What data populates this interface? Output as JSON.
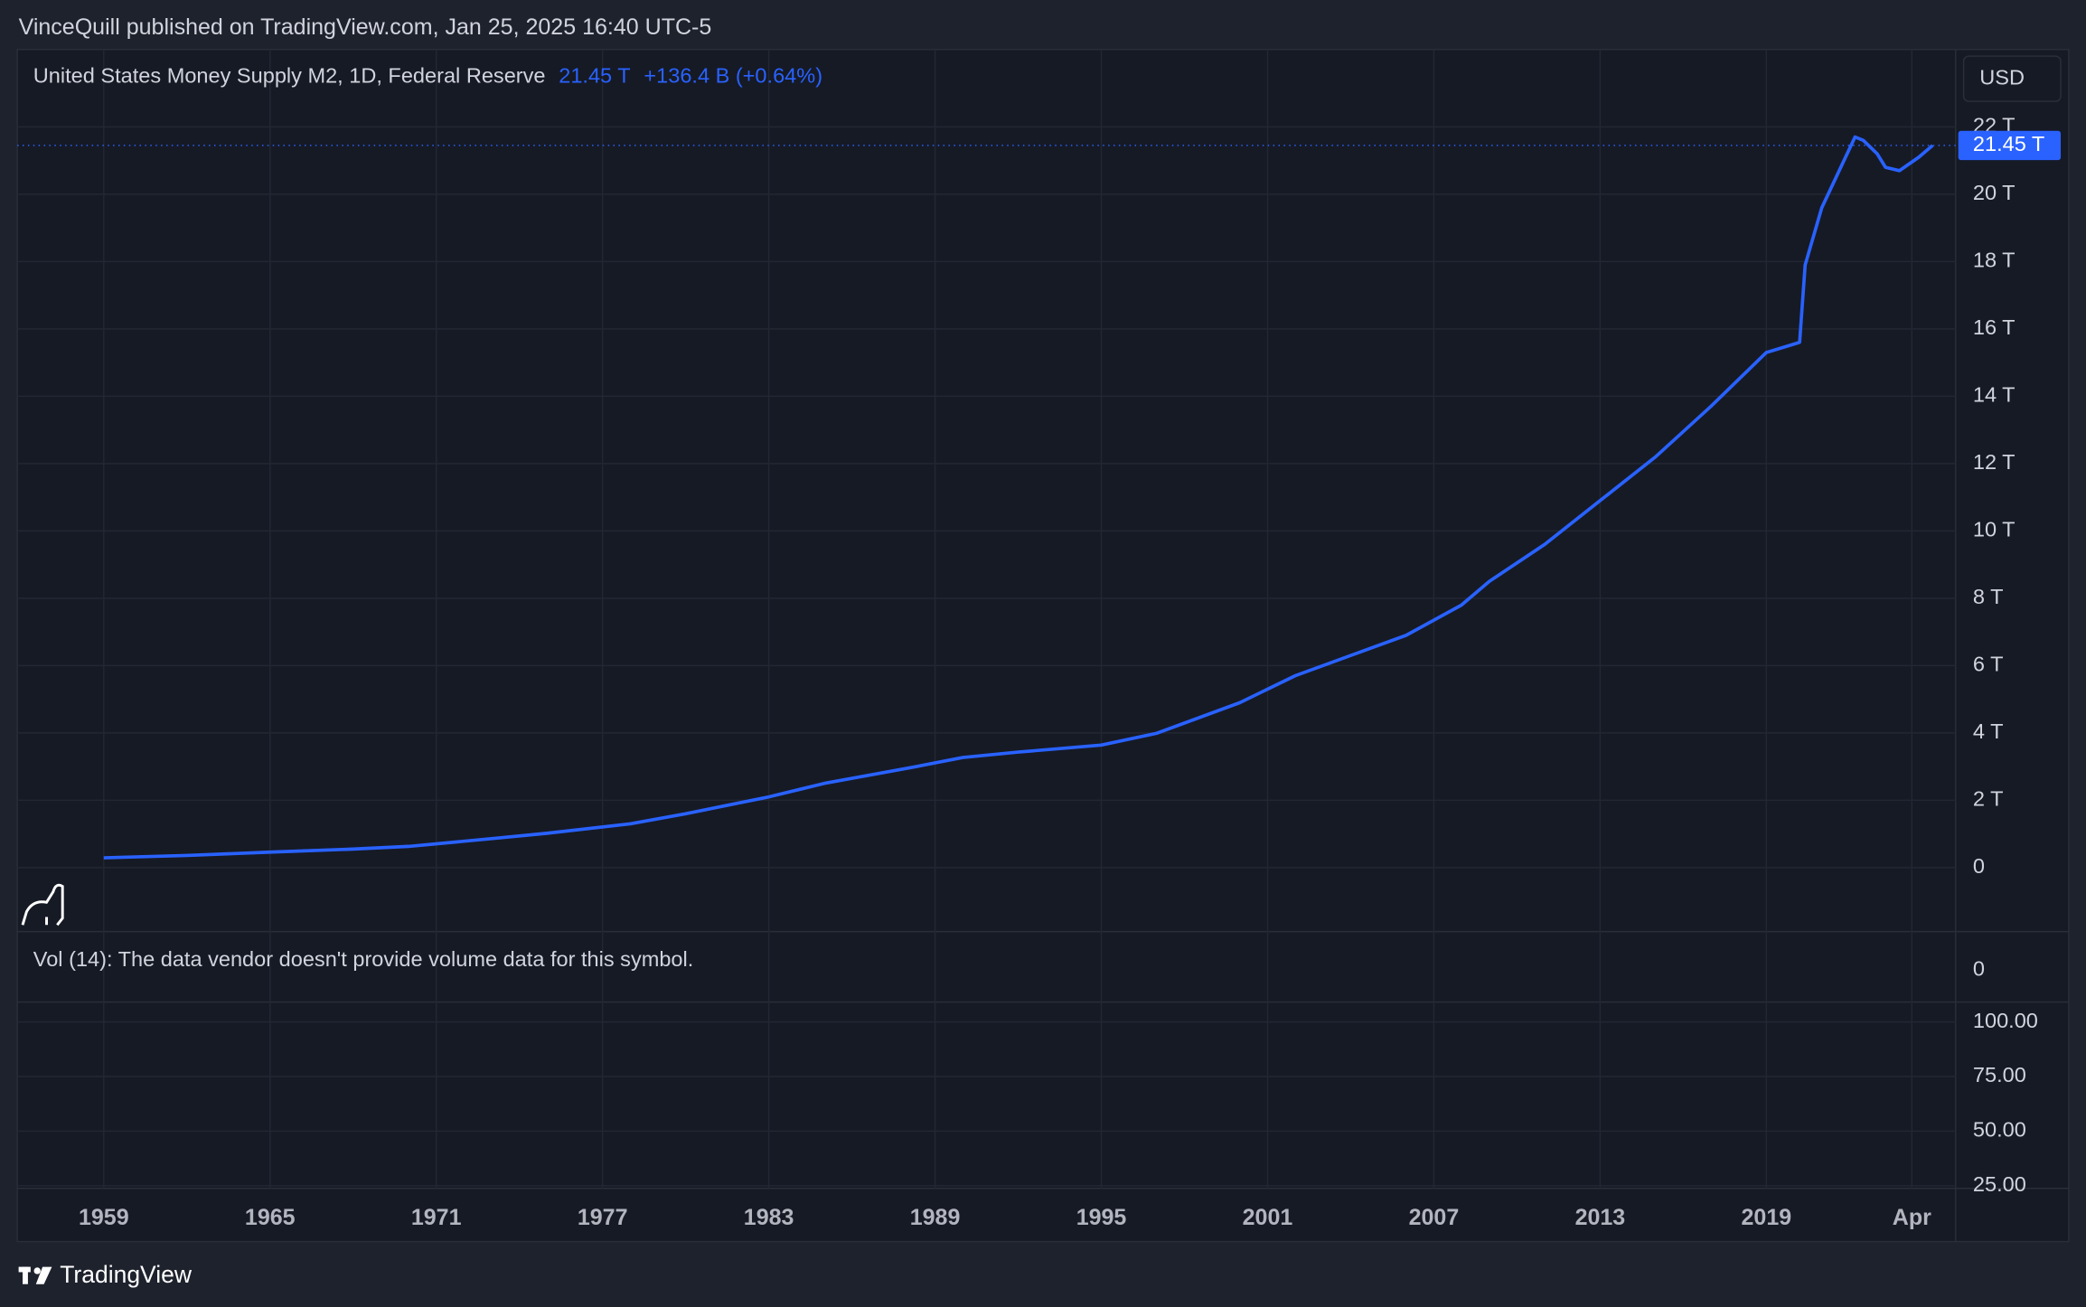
{
  "header": {
    "text": "VinceQuill published on TradingView.com, Jan 25, 2025 16:40 UTC-5"
  },
  "legend": {
    "symbol": "United States Money Supply M2, 1D, Federal Reserve",
    "value": "21.45 T",
    "change": "+136.4 B (+0.64%)"
  },
  "currency_button": "USD",
  "chart_data": {
    "type": "line",
    "x": [
      1959,
      1962,
      1965,
      1968,
      1970,
      1973,
      1975,
      1978,
      1980,
      1983,
      1985,
      1988,
      1990,
      1992,
      1995,
      1997,
      2000,
      2002,
      2004,
      2006,
      2008,
      2009,
      2011,
      2013,
      2015,
      2017,
      2019,
      2020.2,
      2020.4,
      2021,
      2022.2,
      2022.5,
      2023,
      2023.3,
      2023.8,
      2024.5,
      2025
    ],
    "series": [
      {
        "name": "United States Money Supply M2",
        "color": "#2962ff",
        "values": [
          0.29,
          0.36,
          0.46,
          0.55,
          0.63,
          0.86,
          1.02,
          1.3,
          1.6,
          2.1,
          2.5,
          2.95,
          3.27,
          3.43,
          3.64,
          3.99,
          4.9,
          5.7,
          6.3,
          6.9,
          7.8,
          8.5,
          9.6,
          10.9,
          12.2,
          13.7,
          15.3,
          15.6,
          17.9,
          19.6,
          21.7,
          21.6,
          21.2,
          20.8,
          20.7,
          21.1,
          21.45
        ]
      }
    ],
    "xlim": [
      1955.88,
      2025.83
    ],
    "xticks": [
      1959,
      1965,
      1971,
      1977,
      1983,
      1989,
      1995,
      2001,
      2007,
      2013,
      2019,
      {
        "value": 2024.25,
        "label": "Apr"
      }
    ],
    "ylim": [
      -1.9,
      24.3
    ],
    "yticks": [
      0,
      {
        "value": 2,
        "label": "2 T"
      },
      {
        "value": 4,
        "label": "4 T"
      },
      {
        "value": 6,
        "label": "6 T"
      },
      {
        "value": 8,
        "label": "8 T"
      },
      {
        "value": 10,
        "label": "10 T"
      },
      {
        "value": 12,
        "label": "12 T"
      },
      {
        "value": 14,
        "label": "14 T"
      },
      {
        "value": 16,
        "label": "16 T"
      },
      {
        "value": 18,
        "label": "18 T"
      },
      {
        "value": 20,
        "label": "20 T"
      },
      {
        "value": 22,
        "label": "22 T"
      }
    ],
    "price_label": {
      "value": 21.45,
      "label": "21.45 T"
    },
    "grid": true
  },
  "volume_pane": {
    "text": "Vol (14): The data vendor doesn't provide volume data for this symbol.",
    "yticks": [
      0
    ]
  },
  "lower_pane": {
    "ylim": [
      23.8,
      109.1
    ],
    "yticks": [
      {
        "value": 100,
        "label": "100.00"
      },
      {
        "value": 75,
        "label": "75.00"
      },
      {
        "value": 50,
        "label": "50.00"
      },
      {
        "value": 25,
        "label": "25.00"
      }
    ]
  },
  "footer": {
    "brand": "TradingView"
  }
}
